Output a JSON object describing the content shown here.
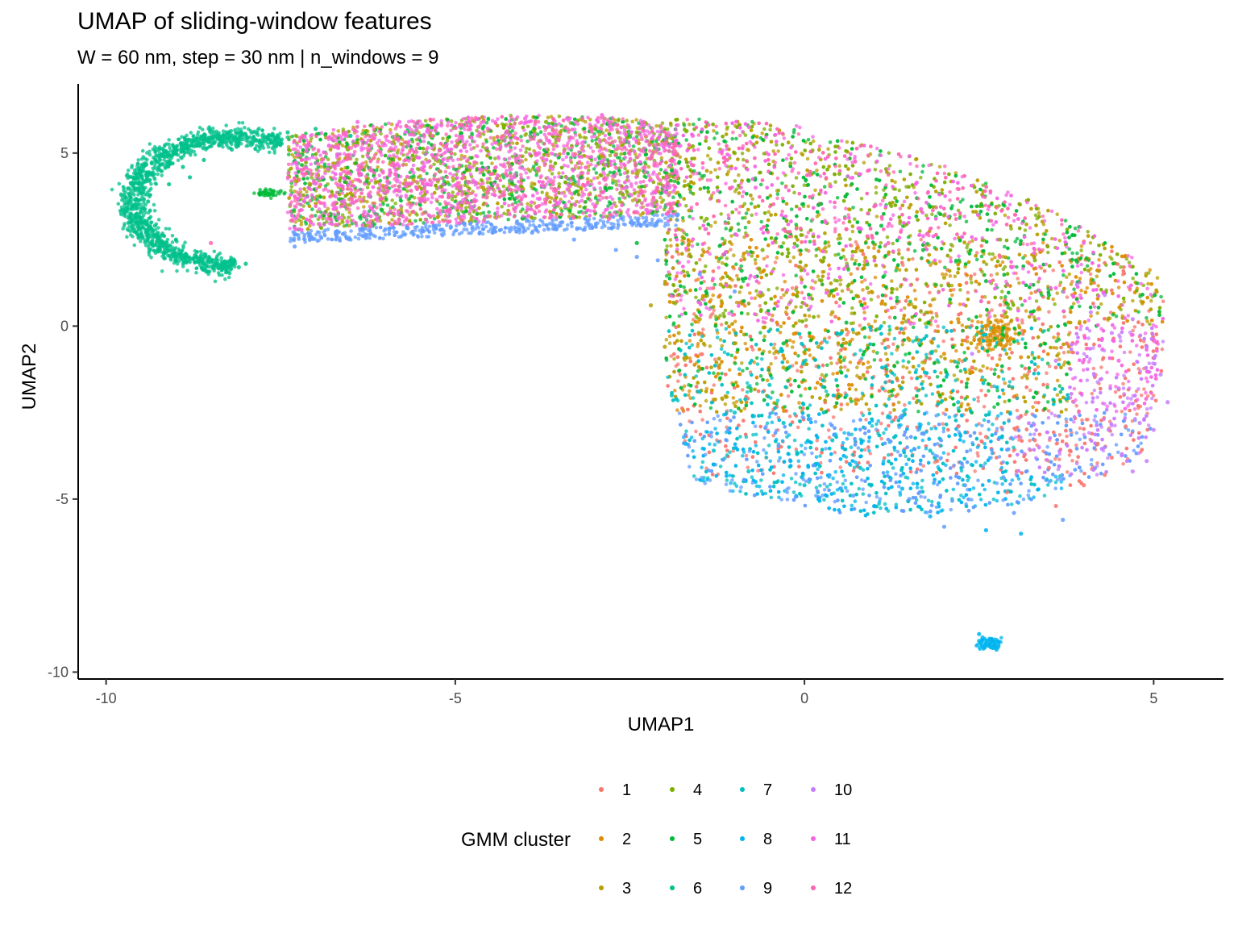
{
  "chart_data": {
    "type": "scatter",
    "title": "UMAP of sliding-window features",
    "subtitle": "W = 60 nm, step = 30 nm | n_windows = 9",
    "xlabel": "UMAP1",
    "ylabel": "UMAP2",
    "xlim": [
      -10.4,
      6.0
    ],
    "ylim": [
      -10.2,
      7.0
    ],
    "x_ticks": [
      -10,
      -5,
      0,
      5
    ],
    "y_ticks": [
      -10,
      -5,
      0,
      5
    ],
    "grid": false,
    "legend": {
      "title": "GMM cluster",
      "placement": "bottom",
      "entries": [
        "1",
        "2",
        "3",
        "4",
        "5",
        "6",
        "7",
        "8",
        "9",
        "10",
        "11",
        "12"
      ]
    },
    "series": [
      {
        "name": "1",
        "color": "#F8766D",
        "points": [
          [
            3.8,
            -3.6
          ],
          [
            4.2,
            -3.4
          ],
          [
            4.4,
            -3.8
          ],
          [
            3.5,
            -4.1
          ],
          [
            4.0,
            -4.6
          ],
          [
            2.6,
            -3.2
          ],
          [
            2.2,
            -2.9
          ],
          [
            3.1,
            -2.6
          ],
          [
            1.6,
            -1.8
          ],
          [
            2.4,
            -1.2
          ],
          [
            0.8,
            -1.0
          ],
          [
            1.2,
            -0.6
          ],
          [
            3.6,
            -5.2
          ],
          [
            2.9,
            -4.8
          ],
          [
            1.9,
            -3.9
          ],
          [
            4.6,
            -2.9
          ],
          [
            0.6,
            2.8
          ],
          [
            3.3,
            -3.3
          ],
          [
            4.3,
            -4.3
          ]
        ]
      },
      {
        "name": "2",
        "color": "#DE8C00",
        "points": [
          [
            2.7,
            -0.2
          ],
          [
            2.8,
            -0.5
          ],
          [
            2.6,
            0.0
          ],
          [
            2.9,
            -0.3
          ],
          [
            2.5,
            -0.4
          ],
          [
            1.8,
            0.6
          ],
          [
            2.2,
            0.2
          ],
          [
            3.1,
            -0.9
          ],
          [
            1.4,
            0.1
          ],
          [
            2.0,
            -0.8
          ]
        ]
      },
      {
        "name": "3",
        "color": "#B79F00",
        "points": [
          [
            -2.2,
            0.6
          ],
          [
            -1.8,
            -0.2
          ],
          [
            -1.5,
            0.2
          ],
          [
            -1.0,
            -0.5
          ],
          [
            -0.6,
            0.9
          ],
          [
            0.2,
            -0.6
          ],
          [
            0.8,
            -1.5
          ],
          [
            1.5,
            -0.4
          ],
          [
            -1.2,
            1.2
          ],
          [
            0.4,
            0.4
          ],
          [
            -0.3,
            -1.2
          ],
          [
            2.0,
            1.4
          ],
          [
            1.0,
            2.0
          ],
          [
            -3.5,
            5.6
          ],
          [
            -2.9,
            4.9
          ],
          [
            -4.6,
            4.0
          ],
          [
            -2.0,
            -0.6
          ]
        ]
      },
      {
        "name": "4",
        "color": "#7CAE00",
        "points": [
          [
            -4.3,
            5.8
          ],
          [
            -3.7,
            5.9
          ],
          [
            -3.0,
            5.7
          ],
          [
            -2.4,
            5.6
          ],
          [
            -1.6,
            5.2
          ],
          [
            -1.0,
            5.0
          ],
          [
            -0.2,
            4.7
          ],
          [
            0.5,
            4.4
          ],
          [
            1.3,
            3.7
          ],
          [
            2.0,
            3.2
          ],
          [
            2.8,
            2.5
          ],
          [
            3.3,
            1.9
          ],
          [
            -5.6,
            4.8
          ],
          [
            -6.4,
            5.3
          ],
          [
            -0.6,
            2.2
          ],
          [
            0.9,
            1.1
          ],
          [
            -1.4,
            3.1
          ],
          [
            -2.6,
            3.8
          ]
        ]
      },
      {
        "name": "5",
        "color": "#00BA38",
        "points": [
          [
            -7.6,
            3.9
          ],
          [
            -7.8,
            3.8
          ],
          [
            -7.5,
            3.9
          ],
          [
            -0.8,
            4.2
          ],
          [
            0.2,
            3.5
          ],
          [
            1.1,
            2.9
          ],
          [
            -1.9,
            4.5
          ],
          [
            -3.2,
            4.3
          ],
          [
            0.6,
            0.1
          ],
          [
            -0.9,
            1.6
          ],
          [
            1.7,
            2.2
          ],
          [
            2.6,
            1.3
          ],
          [
            -0.3,
            -0.5
          ],
          [
            3.5,
            0.9
          ],
          [
            -2.4,
            2.4
          ]
        ]
      },
      {
        "name": "6",
        "color": "#00C08B",
        "points": [
          [
            -9.6,
            3.2
          ],
          [
            -9.4,
            3.6
          ],
          [
            -9.1,
            4.1
          ],
          [
            -9.3,
            2.9
          ],
          [
            -9.0,
            2.5
          ],
          [
            -8.7,
            2.0
          ],
          [
            -8.4,
            1.8
          ],
          [
            -8.1,
            1.7
          ],
          [
            -8.9,
            4.6
          ],
          [
            -8.6,
            4.8
          ],
          [
            -8.2,
            5.1
          ],
          [
            -7.8,
            5.3
          ],
          [
            -7.4,
            5.6
          ],
          [
            -7.0,
            5.7
          ],
          [
            -6.5,
            5.5
          ],
          [
            -9.5,
            3.0
          ],
          [
            -8.0,
            1.8
          ],
          [
            -8.8,
            4.3
          ]
        ]
      },
      {
        "name": "7",
        "color": "#00BFC4",
        "points": [
          [
            -1.9,
            -2.0
          ],
          [
            -1.5,
            -1.9
          ],
          [
            -1.0,
            -2.5
          ],
          [
            -0.3,
            -2.8
          ],
          [
            0.4,
            -3.3
          ],
          [
            1.2,
            -2.6
          ],
          [
            0.8,
            -4.1
          ],
          [
            0.0,
            -4.6
          ],
          [
            -0.8,
            -4.2
          ],
          [
            1.8,
            -3.6
          ],
          [
            -0.5,
            -1.7
          ],
          [
            0.6,
            -2.0
          ],
          [
            2.2,
            -2.2
          ],
          [
            -1.3,
            -3.6
          ]
        ]
      },
      {
        "name": "8",
        "color": "#00B4F0",
        "points": [
          [
            -1.7,
            -3.4
          ],
          [
            -1.3,
            -4.0
          ],
          [
            -0.7,
            -4.5
          ],
          [
            0.2,
            -5.0
          ],
          [
            1.0,
            -5.2
          ],
          [
            1.8,
            -5.5
          ],
          [
            2.6,
            -5.9
          ],
          [
            3.1,
            -6.0
          ],
          [
            2.5,
            -9.1
          ],
          [
            2.6,
            -9.2
          ],
          [
            2.7,
            -9.3
          ],
          [
            2.55,
            -9.0
          ],
          [
            2.65,
            -9.25
          ],
          [
            2.5,
            -8.9
          ],
          [
            2.75,
            -9.35
          ],
          [
            1.4,
            -4.7
          ],
          [
            -0.2,
            -3.9
          ]
        ]
      },
      {
        "name": "9",
        "color": "#619CFF",
        "points": [
          [
            -7.3,
            2.3
          ],
          [
            -6.7,
            2.6
          ],
          [
            -6.0,
            2.8
          ],
          [
            -5.3,
            2.9
          ],
          [
            -4.6,
            2.8
          ],
          [
            -3.9,
            2.7
          ],
          [
            -3.3,
            2.5
          ],
          [
            -2.7,
            2.2
          ],
          [
            -2.1,
            1.9
          ],
          [
            -1.5,
            1.5
          ],
          [
            1.5,
            -5.0
          ],
          [
            2.3,
            -4.6
          ],
          [
            3.0,
            -5.4
          ],
          [
            3.7,
            -5.6
          ],
          [
            2.0,
            -5.8
          ],
          [
            0.7,
            -4.9
          ],
          [
            -1.0,
            1.0
          ],
          [
            -2.4,
            2.0
          ]
        ]
      },
      {
        "name": "10",
        "color": "#C77CFF",
        "points": [
          [
            3.9,
            1.2
          ],
          [
            4.3,
            0.9
          ],
          [
            4.7,
            0.2
          ],
          [
            4.9,
            -0.6
          ],
          [
            5.1,
            -1.4
          ],
          [
            5.2,
            -2.2
          ],
          [
            5.0,
            -3.0
          ],
          [
            4.9,
            -3.9
          ],
          [
            4.7,
            -4.2
          ],
          [
            4.4,
            -0.2
          ],
          [
            4.1,
            0.4
          ],
          [
            2.4,
            -0.8
          ],
          [
            3.6,
            -1.0
          ],
          [
            4.5,
            -1.8
          ],
          [
            4.8,
            -2.8
          ]
        ]
      },
      {
        "name": "11",
        "color": "#F564E3",
        "points": [
          [
            -6.4,
            5.9
          ],
          [
            -5.8,
            5.9
          ],
          [
            -5.2,
            5.8
          ],
          [
            -4.6,
            5.9
          ],
          [
            -4.0,
            6.0
          ],
          [
            -3.4,
            6.0
          ],
          [
            -2.9,
            6.1
          ],
          [
            -2.3,
            5.8
          ],
          [
            -1.6,
            5.5
          ],
          [
            -6.9,
            4.3
          ],
          [
            -7.1,
            4.0
          ],
          [
            -6.3,
            3.3
          ],
          [
            -5.5,
            3.6
          ],
          [
            -4.8,
            4.6
          ],
          [
            -3.8,
            5.0
          ],
          [
            -0.7,
            4.0
          ],
          [
            0.3,
            3.0
          ],
          [
            1.7,
            2.6
          ],
          [
            3.6,
            1.1
          ],
          [
            4.5,
            -1.0
          ]
        ]
      },
      {
        "name": "12",
        "color": "#FF64B0",
        "points": [
          [
            -7.2,
            4.8
          ],
          [
            -6.8,
            3.1
          ],
          [
            -6.2,
            4.5
          ],
          [
            -5.6,
            3.3
          ],
          [
            -5.0,
            5.2
          ],
          [
            -4.3,
            3.8
          ],
          [
            -3.6,
            4.1
          ],
          [
            -8.5,
            2.4
          ],
          [
            -6.0,
            4.0
          ],
          [
            0.6,
            2.8
          ],
          [
            0.9,
            2.6
          ],
          [
            1.2,
            2.4
          ],
          [
            -1.9,
            3.4
          ],
          [
            2.8,
            2.0
          ],
          [
            -2.8,
            3.1
          ]
        ]
      }
    ]
  }
}
